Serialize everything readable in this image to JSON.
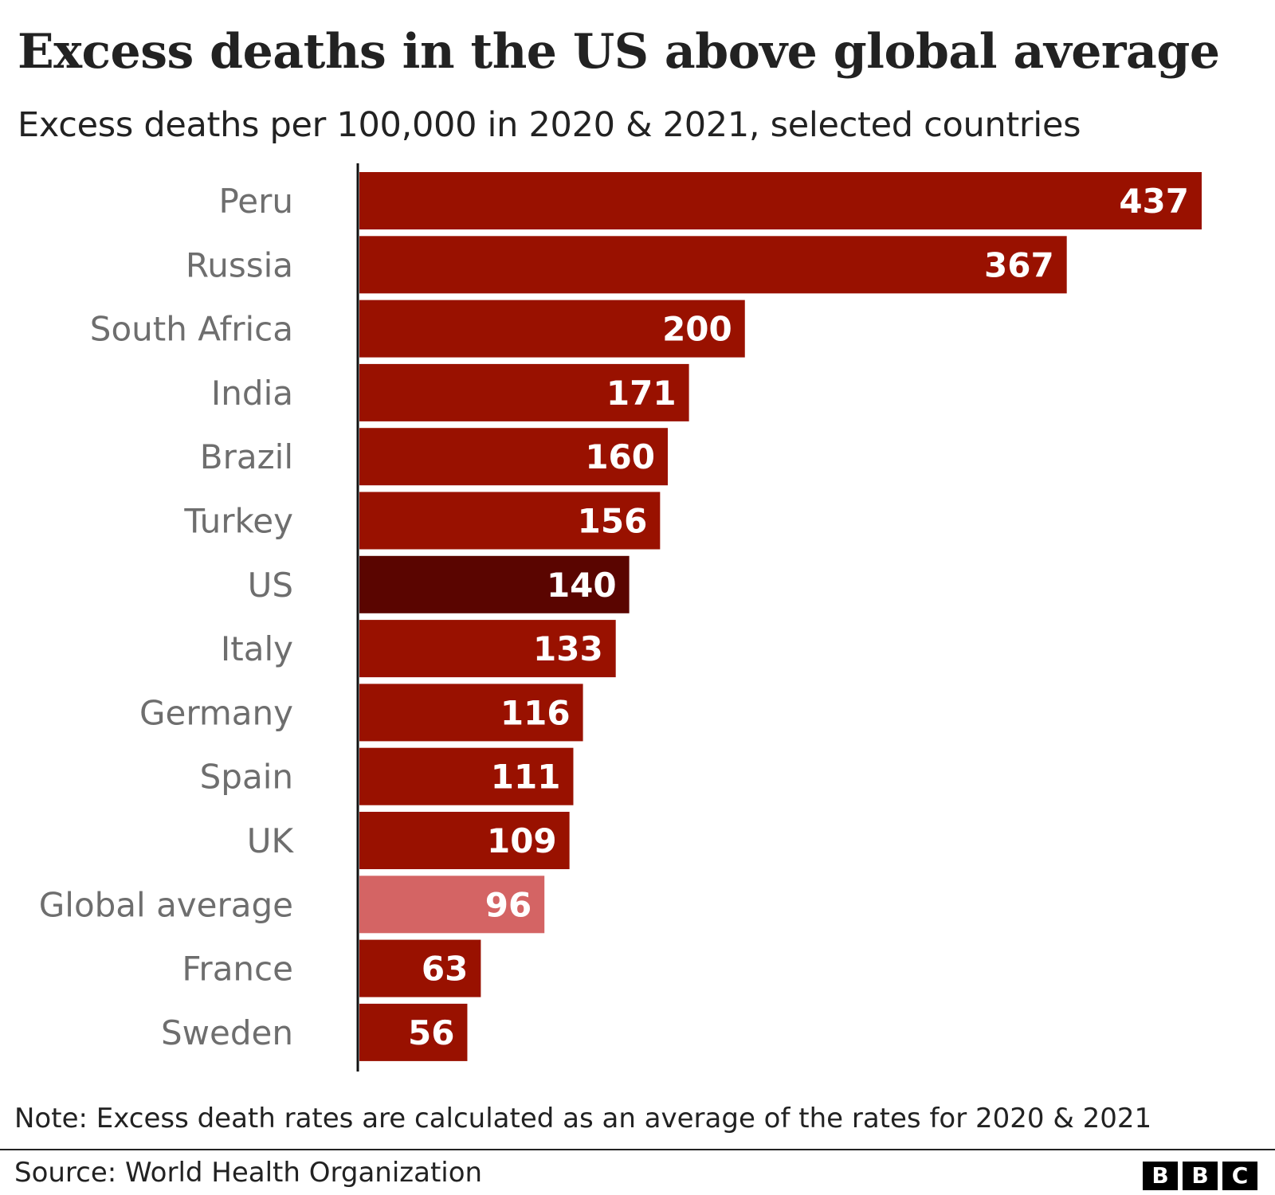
{
  "chart_data": {
    "type": "bar",
    "orientation": "horizontal",
    "title": "Excess deaths in the US above global average",
    "subtitle": "Excess deaths per 100,000 in 2020 & 2021, selected countries",
    "categories": [
      "Peru",
      "Russia",
      "South Africa",
      "India",
      "Brazil",
      "Turkey",
      "US",
      "Italy",
      "Germany",
      "Spain",
      "UK",
      "Global average",
      "France",
      "Sweden"
    ],
    "values": [
      437,
      367,
      200,
      171,
      160,
      156,
      140,
      133,
      116,
      111,
      109,
      96,
      63,
      56
    ],
    "xlim": [
      0,
      437
    ],
    "grid": false,
    "colors": {
      "default": "#991100",
      "US": "#5a0500",
      "Global average": "#d46464"
    }
  },
  "note": "Note: Excess death rates are calculated as an average of the rates for 2020 & 2021",
  "source": "Source: World Health Organization",
  "logo": {
    "letters": [
      "B",
      "B",
      "C"
    ]
  }
}
